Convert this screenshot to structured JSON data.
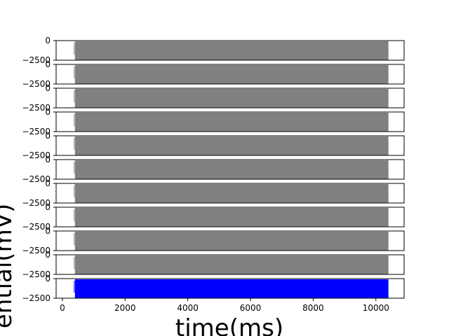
{
  "chart_data": {
    "type": "line",
    "layout": "stacked-subplots",
    "subplot_count": 11,
    "xlabel": "time(ms)",
    "ylabel": "ential(mV)",
    "xlim": [
      -200,
      10900
    ],
    "ylim": [
      -2500,
      0
    ],
    "x_ticks": [
      0,
      2000,
      4000,
      6000,
      8000,
      10000
    ],
    "x_tick_labels": [
      "0",
      "2000",
      "4000",
      "6000",
      "8000",
      "10000"
    ],
    "y_ticks": [
      0,
      -2500
    ],
    "y_tick_labels": [
      "0",
      "−2500"
    ],
    "signal": {
      "x_start": 400,
      "x_end": 10400,
      "y_top": 0,
      "y_bottom": -2500,
      "description_values": "dense spike trains filling the range between 0 and -2500 mV"
    },
    "series": [
      {
        "color": "#808080",
        "x_start": 400,
        "x_end": 10400
      },
      {
        "color": "#808080",
        "x_start": 400,
        "x_end": 10400
      },
      {
        "color": "#808080",
        "x_start": 400,
        "x_end": 10400
      },
      {
        "color": "#808080",
        "x_start": 400,
        "x_end": 10400
      },
      {
        "color": "#808080",
        "x_start": 400,
        "x_end": 10400
      },
      {
        "color": "#808080",
        "x_start": 400,
        "x_end": 10400
      },
      {
        "color": "#808080",
        "x_start": 400,
        "x_end": 10400
      },
      {
        "color": "#808080",
        "x_start": 400,
        "x_end": 10400
      },
      {
        "color": "#808080",
        "x_start": 400,
        "x_end": 10400
      },
      {
        "color": "#808080",
        "x_start": 400,
        "x_end": 10400
      },
      {
        "color": "#0000ff",
        "x_start": 400,
        "x_end": 10400
      }
    ]
  }
}
